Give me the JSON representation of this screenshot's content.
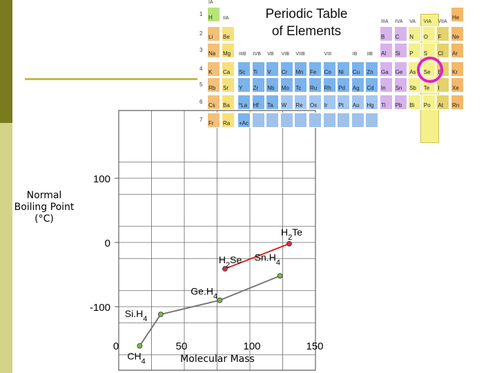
{
  "periodic_table": {
    "title_line1": "Periodic Table",
    "title_line2": "of Elements",
    "highlight_color": "#e020d0",
    "column_highlight_color": "#f5f08a",
    "groups": [
      "IA",
      "IIA",
      "IIIB",
      "IVB",
      "VB",
      "VIB",
      "VIIB",
      "VIII",
      "IB",
      "IIB",
      "IIIA",
      "IVA",
      "VA",
      "VIA",
      "VIIA"
    ],
    "period_numbers": [
      "1",
      "2",
      "3",
      "4",
      "5",
      "6",
      "7"
    ],
    "elements": {
      "p1": [
        "H",
        "He"
      ],
      "p2": [
        "Li",
        "Be",
        "B",
        "C",
        "N",
        "O",
        "F",
        "Ne"
      ],
      "p3": [
        "Na",
        "Mg",
        "Al",
        "Si",
        "P",
        "S",
        "Cl",
        "Ar"
      ],
      "p4": [
        "K",
        "Ca",
        "Sc",
        "Ti",
        "V",
        "Cr",
        "Mn",
        "Fe",
        "Co",
        "Ni",
        "Cu",
        "Zn",
        "Ga",
        "Ge",
        "As",
        "Se",
        "Br",
        "Kr"
      ],
      "p5": [
        "Rb",
        "Sr",
        "Y",
        "Zr",
        "Nb",
        "Mo",
        "Tc",
        "Ru",
        "Rh",
        "Pd",
        "Ag",
        "Cd",
        "In",
        "Sn",
        "Sb",
        "Te",
        "I",
        "Xe"
      ],
      "p6": [
        "Cs",
        "Ba",
        "*La",
        "Hf",
        "Ta",
        "W",
        "Re",
        "Os",
        "Ir",
        "Pt",
        "Au",
        "Hg",
        "Tl",
        "Pb",
        "Bi",
        "Po",
        "At",
        "Rn"
      ],
      "p7": [
        "Fr",
        "Ra",
        "+Ac"
      ]
    }
  },
  "chart_data": {
    "type": "line",
    "title": "",
    "xlabel": "Molecular Mass",
    "ylabel_line1": "Normal",
    "ylabel_line2": "Boiling Point",
    "ylabel_line3": "(°C)",
    "xlim": [
      0,
      150
    ],
    "ylim": [
      -150,
      150
    ],
    "x_ticks": [
      "0",
      "50",
      "100",
      "150"
    ],
    "y_ticks": [
      "100",
      "0",
      "-100"
    ],
    "x_tick_values": [
      0,
      50,
      100,
      150
    ],
    "y_tick_values": [
      100,
      0,
      -100
    ],
    "grid": true,
    "series": [
      {
        "color": "#777777",
        "marker_color": "#7fb84a",
        "points": [
          {
            "label": "CH4",
            "x": 16,
            "y": -161
          },
          {
            "label": "Si.H4",
            "x": 32,
            "y": -112
          },
          {
            "label": "Ge.H4",
            "x": 77,
            "y": -90
          },
          {
            "label": "Sn.H4",
            "x": 123,
            "y": -52
          }
        ]
      },
      {
        "color": "#dd2222",
        "marker_color": "#cc3344",
        "points": [
          {
            "label": "H2Se",
            "x": 81,
            "y": -41
          },
          {
            "label": "H2Te",
            "x": 130,
            "y": -2
          }
        ]
      }
    ]
  }
}
